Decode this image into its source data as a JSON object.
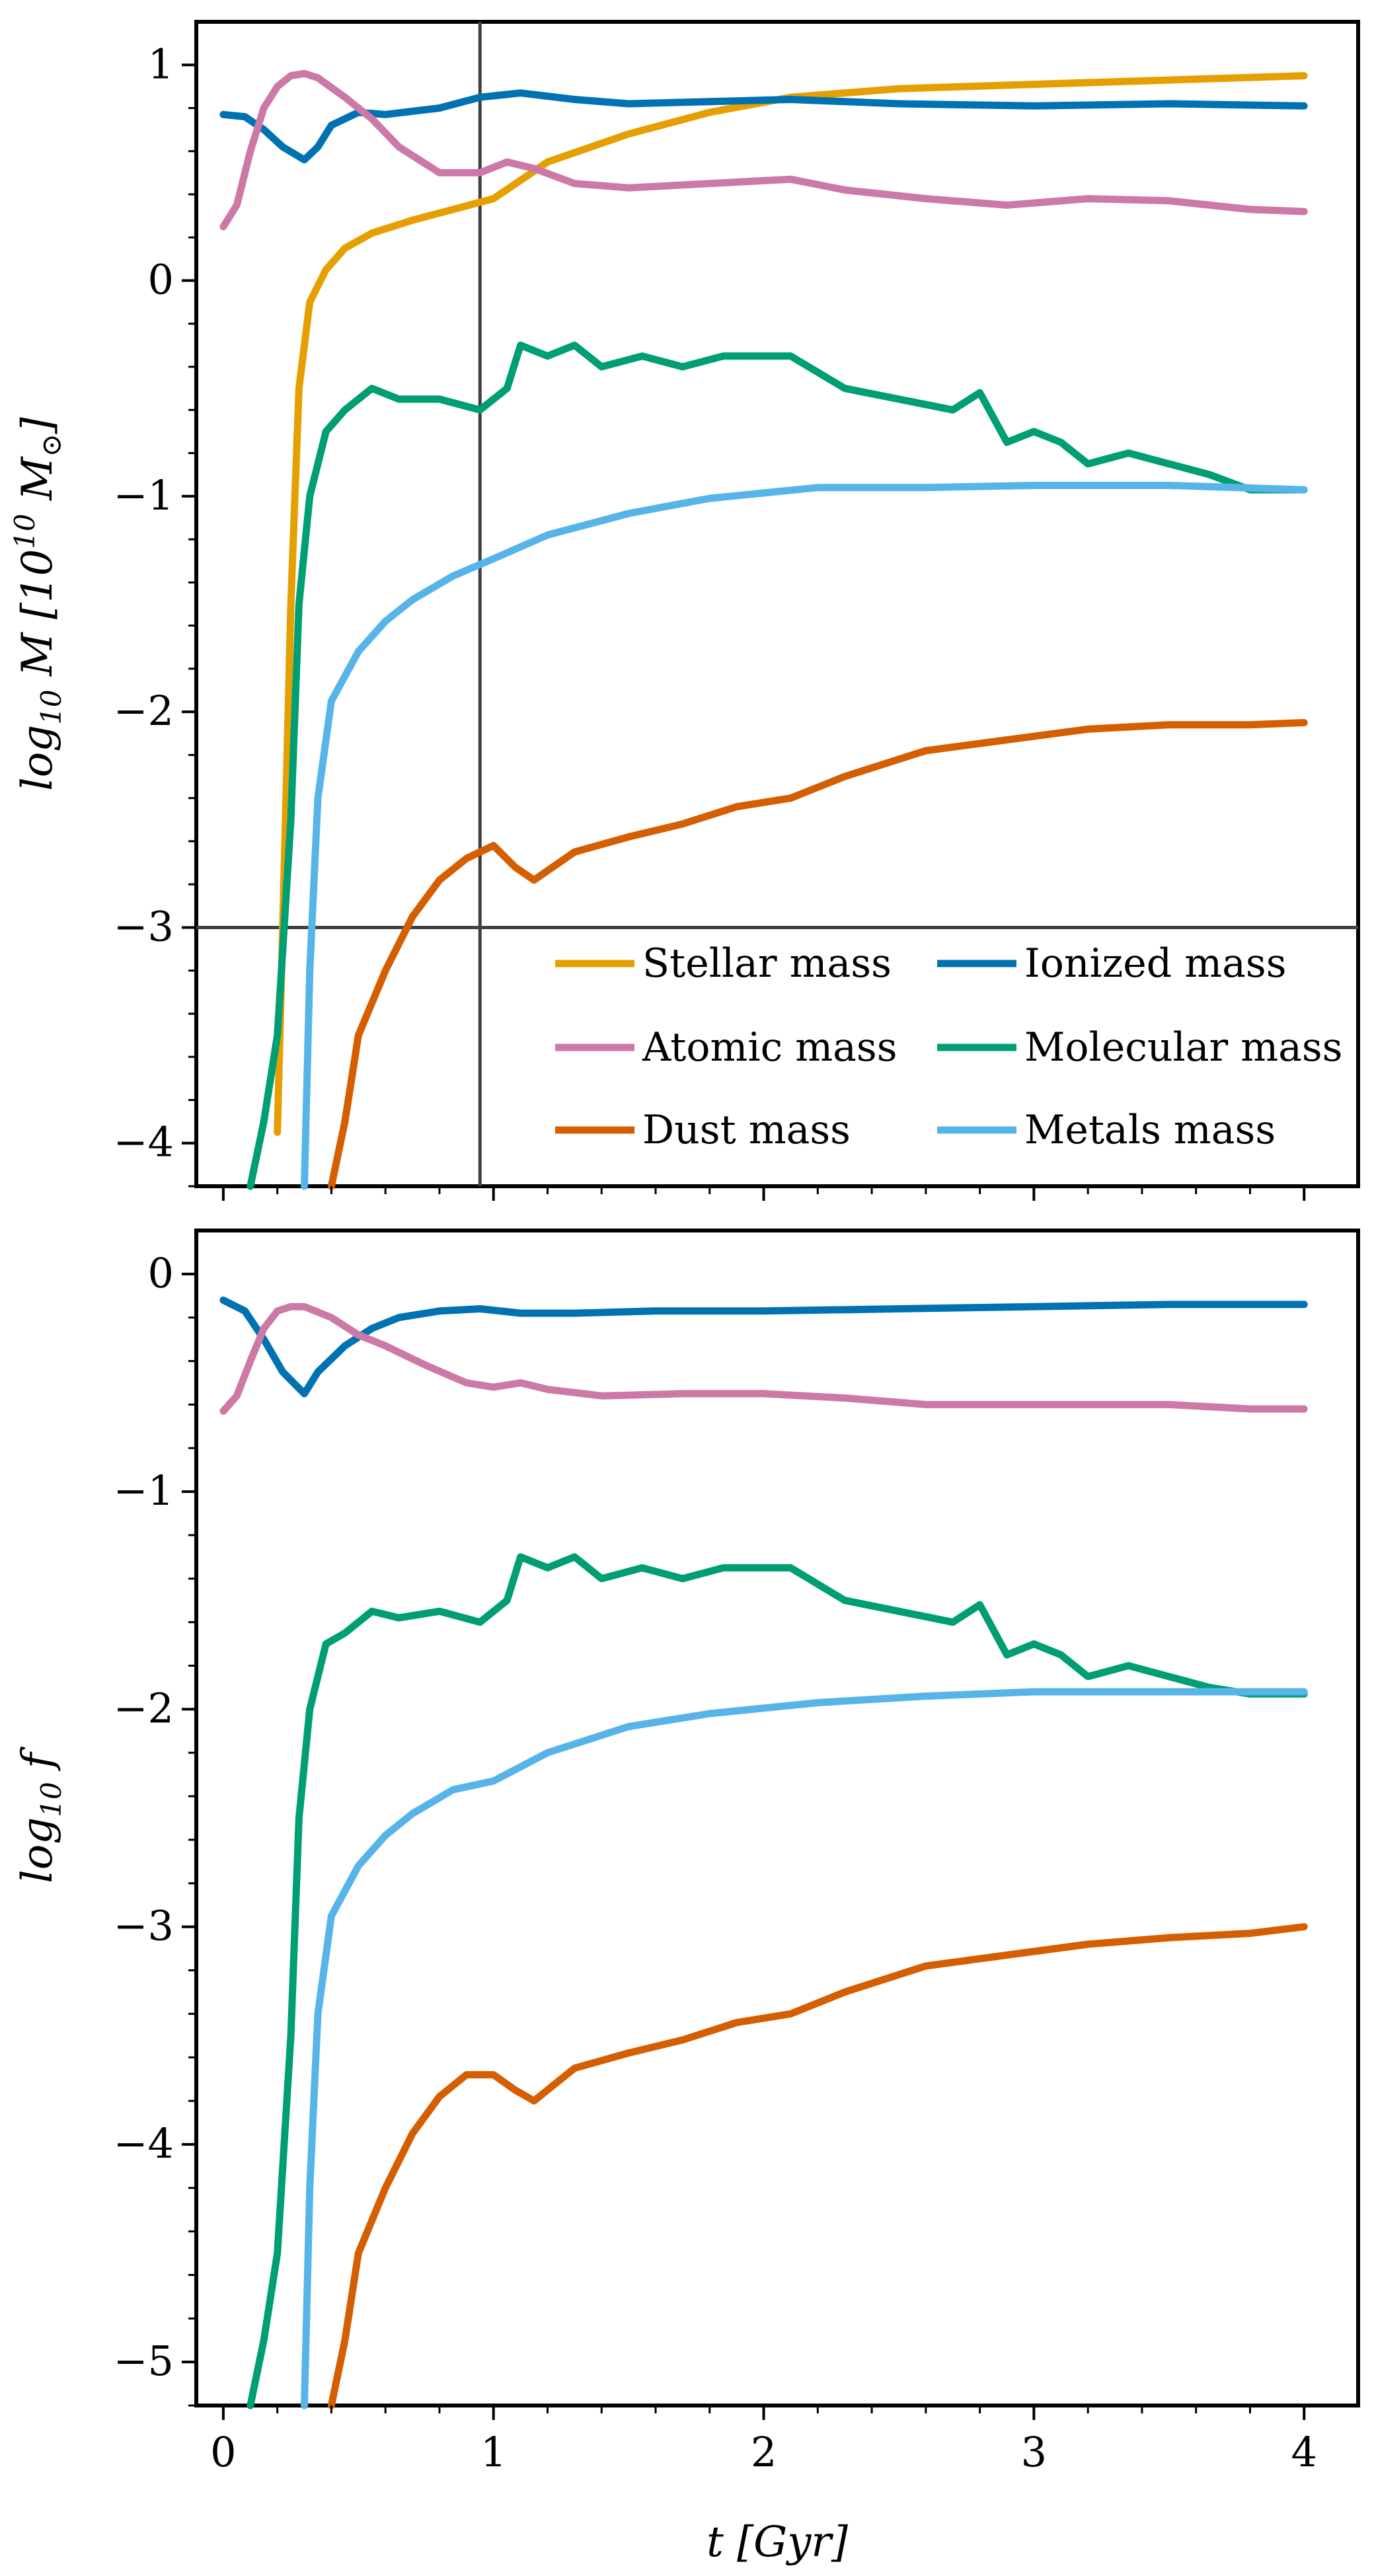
{
  "chart_data": [
    {
      "type": "line",
      "ylabel": "log₁₀ M [10¹⁰ M⊙]",
      "xlim": [
        -0.1,
        4.2
      ],
      "ylim": [
        -4.2,
        1.2
      ],
      "xticks": [
        0,
        1,
        2,
        3,
        4
      ],
      "yticks": [
        1,
        0,
        -1,
        -2,
        -3,
        -4
      ],
      "ytick_labels": [
        "1",
        "0",
        "−1",
        "−2",
        "−3",
        "−4"
      ],
      "reference_lines": {
        "vertical_x": 0.95,
        "horizontal_y": -3
      },
      "legend_position": "lower-right",
      "legend": [
        "Stellar mass",
        "Ionized mass",
        "Atomic mass",
        "Molecular mass",
        "Dust mass",
        "Metals mass"
      ],
      "series": [
        {
          "name": "Stellar mass",
          "color": "#E69F00",
          "x": [
            0.2,
            0.22,
            0.25,
            0.28,
            0.32,
            0.38,
            0.45,
            0.55,
            0.7,
            0.85,
            1.0,
            1.2,
            1.5,
            1.8,
            2.1,
            2.5,
            3.0,
            3.5,
            4.0
          ],
          "y": [
            -3.95,
            -3.0,
            -1.5,
            -0.5,
            -0.1,
            0.05,
            0.15,
            0.22,
            0.28,
            0.33,
            0.38,
            0.55,
            0.68,
            0.78,
            0.85,
            0.89,
            0.91,
            0.93,
            0.95
          ]
        },
        {
          "name": "Ionized mass",
          "color": "#0072B2",
          "x": [
            0,
            0.08,
            0.15,
            0.22,
            0.3,
            0.35,
            0.4,
            0.5,
            0.6,
            0.8,
            0.95,
            1.1,
            1.3,
            1.5,
            1.8,
            2.1,
            2.5,
            3.0,
            3.5,
            4.0
          ],
          "y": [
            0.77,
            0.76,
            0.7,
            0.62,
            0.56,
            0.62,
            0.72,
            0.78,
            0.77,
            0.8,
            0.85,
            0.87,
            0.84,
            0.82,
            0.83,
            0.84,
            0.82,
            0.81,
            0.82,
            0.81
          ]
        },
        {
          "name": "Atomic mass",
          "color": "#CC79A7",
          "x": [
            0,
            0.05,
            0.1,
            0.15,
            0.2,
            0.25,
            0.3,
            0.35,
            0.45,
            0.55,
            0.65,
            0.8,
            0.95,
            1.05,
            1.15,
            1.3,
            1.5,
            1.8,
            2.1,
            2.3,
            2.6,
            2.9,
            3.2,
            3.5,
            3.8,
            4.0
          ],
          "y": [
            0.25,
            0.35,
            0.6,
            0.8,
            0.9,
            0.95,
            0.96,
            0.94,
            0.85,
            0.75,
            0.62,
            0.5,
            0.5,
            0.55,
            0.52,
            0.45,
            0.43,
            0.45,
            0.47,
            0.42,
            0.38,
            0.35,
            0.38,
            0.37,
            0.33,
            0.32
          ]
        },
        {
          "name": "Molecular mass",
          "color": "#009E73",
          "x": [
            0.1,
            0.15,
            0.2,
            0.25,
            0.28,
            0.32,
            0.38,
            0.45,
            0.55,
            0.65,
            0.8,
            0.95,
            1.05,
            1.1,
            1.2,
            1.3,
            1.4,
            1.55,
            1.7,
            1.85,
            2.1,
            2.3,
            2.5,
            2.7,
            2.8,
            2.9,
            3.0,
            3.1,
            3.2,
            3.35,
            3.5,
            3.65,
            3.8,
            4.0
          ],
          "y": [
            -4.2,
            -3.9,
            -3.5,
            -2.5,
            -1.5,
            -1.0,
            -0.7,
            -0.6,
            -0.5,
            -0.55,
            -0.55,
            -0.6,
            -0.5,
            -0.3,
            -0.35,
            -0.3,
            -0.4,
            -0.35,
            -0.4,
            -0.35,
            -0.35,
            -0.5,
            -0.55,
            -0.6,
            -0.52,
            -0.75,
            -0.7,
            -0.75,
            -0.85,
            -0.8,
            -0.85,
            -0.9,
            -0.97,
            -0.97
          ]
        },
        {
          "name": "Dust mass",
          "color": "#D55E00",
          "x": [
            0.4,
            0.45,
            0.5,
            0.6,
            0.7,
            0.8,
            0.9,
            1.0,
            1.08,
            1.15,
            1.3,
            1.5,
            1.7,
            1.9,
            2.1,
            2.3,
            2.6,
            2.9,
            3.2,
            3.5,
            3.8,
            4.0
          ],
          "y": [
            -4.2,
            -3.9,
            -3.5,
            -3.2,
            -2.95,
            -2.78,
            -2.68,
            -2.62,
            -2.72,
            -2.78,
            -2.65,
            -2.58,
            -2.52,
            -2.44,
            -2.4,
            -2.3,
            -2.18,
            -2.13,
            -2.08,
            -2.06,
            -2.06,
            -2.05
          ]
        },
        {
          "name": "Metals mass",
          "color": "#56B4E9",
          "x": [
            0.3,
            0.32,
            0.35,
            0.4,
            0.5,
            0.6,
            0.7,
            0.85,
            1.0,
            1.2,
            1.5,
            1.8,
            2.2,
            2.6,
            3.0,
            3.5,
            4.0
          ],
          "y": [
            -4.2,
            -3.2,
            -2.4,
            -1.95,
            -1.72,
            -1.58,
            -1.48,
            -1.37,
            -1.29,
            -1.18,
            -1.08,
            -1.01,
            -0.96,
            -0.96,
            -0.95,
            -0.95,
            -0.97
          ]
        }
      ]
    },
    {
      "type": "line",
      "xlabel": "t [Gyr]",
      "ylabel": "log₁₀ f",
      "xlim": [
        -0.1,
        4.2
      ],
      "ylim": [
        -5.2,
        0.2
      ],
      "xticks": [
        0,
        1,
        2,
        3,
        4
      ],
      "xtick_labels": [
        "0",
        "1",
        "2",
        "3",
        "4"
      ],
      "yticks": [
        0,
        -1,
        -2,
        -3,
        -4,
        -5
      ],
      "ytick_labels": [
        "0",
        "−1",
        "−2",
        "−3",
        "−4",
        "−5"
      ],
      "series": [
        {
          "name": "Ionized mass",
          "color": "#0072B2",
          "x": [
            0,
            0.08,
            0.15,
            0.22,
            0.3,
            0.35,
            0.45,
            0.55,
            0.65,
            0.8,
            0.95,
            1.1,
            1.3,
            1.6,
            2.0,
            2.5,
            3.0,
            3.5,
            4.0
          ],
          "y": [
            -0.12,
            -0.17,
            -0.3,
            -0.45,
            -0.55,
            -0.45,
            -0.33,
            -0.25,
            -0.2,
            -0.17,
            -0.16,
            -0.18,
            -0.18,
            -0.17,
            -0.17,
            -0.16,
            -0.15,
            -0.14,
            -0.14
          ]
        },
        {
          "name": "Atomic mass",
          "color": "#CC79A7",
          "x": [
            0,
            0.05,
            0.1,
            0.15,
            0.2,
            0.25,
            0.3,
            0.4,
            0.5,
            0.6,
            0.75,
            0.9,
            1.0,
            1.1,
            1.2,
            1.4,
            1.7,
            2.0,
            2.3,
            2.6,
            2.9,
            3.2,
            3.5,
            3.8,
            4.0
          ],
          "y": [
            -0.63,
            -0.56,
            -0.4,
            -0.25,
            -0.17,
            -0.15,
            -0.15,
            -0.2,
            -0.28,
            -0.33,
            -0.42,
            -0.5,
            -0.52,
            -0.5,
            -0.53,
            -0.56,
            -0.55,
            -0.55,
            -0.57,
            -0.6,
            -0.6,
            -0.6,
            -0.6,
            -0.62,
            -0.62
          ]
        },
        {
          "name": "Molecular mass",
          "color": "#009E73",
          "x": [
            0.1,
            0.15,
            0.2,
            0.25,
            0.28,
            0.32,
            0.38,
            0.45,
            0.55,
            0.65,
            0.8,
            0.95,
            1.05,
            1.1,
            1.2,
            1.3,
            1.4,
            1.55,
            1.7,
            1.85,
            2.1,
            2.3,
            2.5,
            2.7,
            2.8,
            2.9,
            3.0,
            3.1,
            3.2,
            3.35,
            3.5,
            3.65,
            3.8,
            4.0
          ],
          "y": [
            -5.2,
            -4.9,
            -4.5,
            -3.5,
            -2.5,
            -2.0,
            -1.7,
            -1.65,
            -1.55,
            -1.58,
            -1.55,
            -1.6,
            -1.5,
            -1.3,
            -1.35,
            -1.3,
            -1.4,
            -1.35,
            -1.4,
            -1.35,
            -1.35,
            -1.5,
            -1.55,
            -1.6,
            -1.52,
            -1.75,
            -1.7,
            -1.75,
            -1.85,
            -1.8,
            -1.85,
            -1.9,
            -1.93,
            -1.93
          ]
        },
        {
          "name": "Metals mass",
          "color": "#56B4E9",
          "x": [
            0.3,
            0.32,
            0.35,
            0.4,
            0.5,
            0.6,
            0.7,
            0.85,
            1.0,
            1.2,
            1.5,
            1.8,
            2.2,
            2.6,
            3.0,
            3.5,
            4.0
          ],
          "y": [
            -5.2,
            -4.2,
            -3.4,
            -2.95,
            -2.72,
            -2.58,
            -2.48,
            -2.37,
            -2.33,
            -2.2,
            -2.08,
            -2.02,
            -1.97,
            -1.94,
            -1.92,
            -1.92,
            -1.92
          ]
        },
        {
          "name": "Dust mass",
          "color": "#D55E00",
          "x": [
            0.4,
            0.45,
            0.5,
            0.6,
            0.7,
            0.8,
            0.9,
            1.0,
            1.08,
            1.15,
            1.3,
            1.5,
            1.7,
            1.9,
            2.1,
            2.3,
            2.6,
            2.9,
            3.2,
            3.5,
            3.8,
            4.0
          ],
          "y": [
            -5.2,
            -4.9,
            -4.5,
            -4.2,
            -3.95,
            -3.78,
            -3.68,
            -3.68,
            -3.75,
            -3.8,
            -3.65,
            -3.58,
            -3.52,
            -3.44,
            -3.4,
            -3.3,
            -3.18,
            -3.13,
            -3.08,
            -3.05,
            -3.03,
            -3.0
          ]
        }
      ]
    }
  ]
}
